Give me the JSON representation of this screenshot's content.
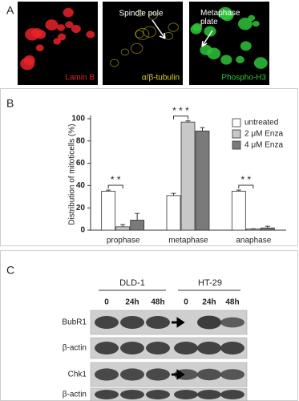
{
  "panel_labels": [
    "A",
    "B",
    "C"
  ],
  "panel_a": {
    "images": [
      {
        "label": "Lamin B",
        "color": "#e8232a"
      },
      {
        "label": "α/β-tubulin",
        "color": "#d8d02a"
      },
      {
        "label": "Phospho-H3",
        "color": "#2ec43a"
      }
    ],
    "annotations": [
      "Spindle pole",
      "Metaphase plate"
    ]
  },
  "chart_data": {
    "type": "bar",
    "y_label": "Distribution of mitoticells (%)",
    "categories": [
      "prophase",
      "metaphase",
      "anaphase"
    ],
    "series": [
      {
        "name": "untreated",
        "color": "#ffffff",
        "values": [
          35,
          31,
          35
        ],
        "errors": [
          1,
          2,
          1
        ]
      },
      {
        "name": "2 μM Enza",
        "color": "#c8c8c8",
        "values": [
          3,
          97,
          1
        ],
        "errors": [
          2,
          1,
          0.3
        ]
      },
      {
        "name": "4 μM Enza",
        "color": "#7a7a7a",
        "values": [
          9,
          89,
          2
        ],
        "errors": [
          6,
          3,
          1.5
        ]
      }
    ],
    "annotations": [
      "* *",
      "* * *",
      "* *"
    ],
    "ylim": [
      0,
      100
    ],
    "yticks": [
      0,
      20,
      40,
      60,
      80,
      100
    ],
    "legend": "top-right"
  },
  "panel_c": {
    "cell_lines": [
      "DLD-1",
      "HT-29"
    ],
    "lanes": [
      "0",
      "24h",
      "48h",
      "0",
      "24h",
      "48h"
    ],
    "rows": [
      "BubR1",
      "β-actin",
      "Chk1",
      "β-actin"
    ]
  }
}
